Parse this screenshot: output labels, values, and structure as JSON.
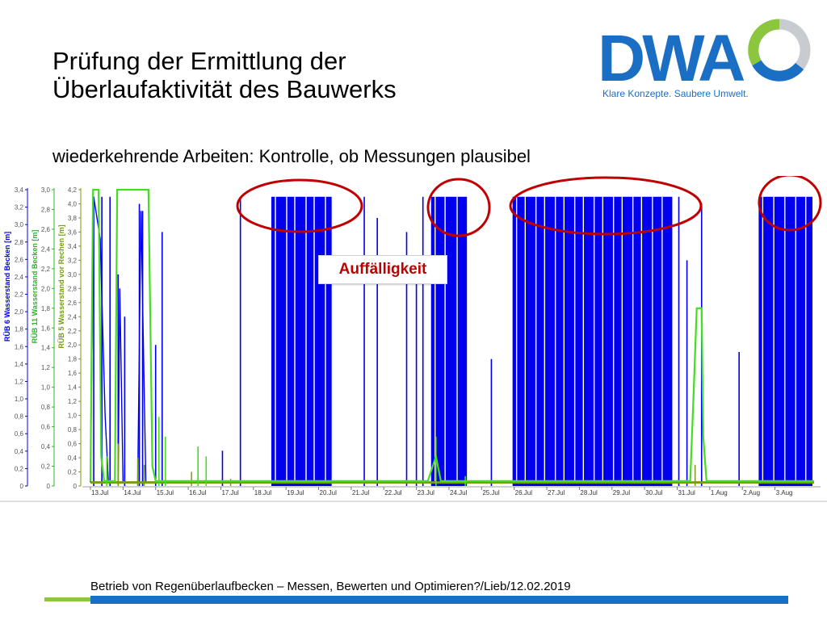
{
  "slide": {
    "title_line1": "Prüfung der Ermittlung der",
    "title_line2": "Überlaufaktivität des Bauwerks",
    "subtitle": "wiederkehrende Arbeiten: Kontrolle, ob Messungen plausibel",
    "footer": "Betrieb von Regenüberlaufbecken – Messen, Bewerten und Optimieren?/Lieb/12.02.2019",
    "callout": "Auffälligkeit"
  },
  "logo": {
    "text": "DWA",
    "tagline": "Klare Konzepte. Saubere Umwelt."
  },
  "colors": {
    "blue_series": "#0000ee",
    "green_series": "#44dd22",
    "olive_series": "#7a9a1a",
    "callout_text": "#c00000",
    "highlight_ellipse": "#c00000",
    "brand_blue": "#1a6fc4",
    "brand_green": "#8cc63f"
  },
  "chart_data": {
    "type": "line",
    "axes": [
      {
        "label": "RÜB 6 Wasserstand Becken [m]",
        "color": "#0000ee",
        "ylim": [
          0,
          3.4
        ],
        "ticks": [
          "0",
          "0,2",
          "0,4",
          "0,6",
          "0,8",
          "1,0",
          "1,2",
          "1,4",
          "1,6",
          "1,8",
          "2,0",
          "2,2",
          "2,4",
          "2,6",
          "2,8",
          "3,0",
          "3,2",
          "3,4"
        ]
      },
      {
        "label": "RÜB 11 Wasserstand Becken [m]",
        "color": "#2db52d",
        "ylim": [
          0,
          3.0
        ],
        "ticks": [
          "0",
          "0,2",
          "0,4",
          "0,6",
          "0,8",
          "1,0",
          "1,2",
          "1,4",
          "1,6",
          "1,8",
          "2,0",
          "2,2",
          "2,4",
          "2,6",
          "2,8",
          "3,0"
        ]
      },
      {
        "label": "RÜB 5 Wasserstand vor Rechen [m]",
        "color": "#7a9a1a",
        "ylim": [
          0,
          4.2
        ],
        "ticks": [
          "0",
          "0,2",
          "0,4",
          "0,6",
          "0,8",
          "1,0",
          "1,2",
          "1,4",
          "1,6",
          "1,8",
          "2,0",
          "2,2",
          "2,4",
          "2,6",
          "2,8",
          "3,0",
          "3,2",
          "3,4",
          "3,6",
          "3,8",
          "4,0",
          "4,2"
        ]
      }
    ],
    "x_ticks": [
      "13.Jul",
      "14.Jul",
      "15.Jul",
      "16.Jul",
      "17.Jul",
      "18.Jul",
      "19.Jul",
      "20.Jul",
      "21.Jul",
      "22.Jul",
      "23.Jul",
      "24.Jul",
      "25.Jul",
      "26.Jul",
      "27.Jul",
      "28.Jul",
      "29.Jul",
      "30.Jul",
      "31.Jul",
      "1.Aug",
      "2.Aug",
      "3.Aug"
    ],
    "xlim": [
      0,
      22.2
    ],
    "grid": false,
    "dense_blocks_days": [
      [
        5.55,
        7.4
      ],
      [
        10.45,
        11.55
      ],
      [
        12.95,
        17.85
      ],
      [
        20.5,
        22.15
      ]
    ],
    "blue_spikes_days": [
      [
        0.1,
        4.1
      ],
      [
        0.35,
        4.1
      ],
      [
        0.6,
        4.1
      ],
      [
        0.85,
        3.0
      ],
      [
        1.05,
        2.4
      ],
      [
        1.5,
        4.0
      ],
      [
        1.6,
        3.9
      ],
      [
        2.0,
        2.0
      ],
      [
        2.2,
        3.6
      ],
      [
        4.05,
        0.5
      ],
      [
        4.6,
        4.1
      ],
      [
        8.4,
        4.1
      ],
      [
        8.8,
        3.8
      ],
      [
        9.7,
        3.6
      ],
      [
        10.0,
        3.0
      ],
      [
        10.2,
        4.1
      ],
      [
        12.3,
        1.8
      ],
      [
        18.05,
        4.1
      ],
      [
        18.3,
        3.2
      ],
      [
        18.75,
        4.0
      ],
      [
        19.9,
        1.9
      ]
    ],
    "green_series_points": [
      [
        0.0,
        0.05
      ],
      [
        0.08,
        3.0
      ],
      [
        0.25,
        3.0
      ],
      [
        0.33,
        0.3
      ],
      [
        0.42,
        0.05
      ],
      [
        0.75,
        0.05
      ],
      [
        0.82,
        3.0
      ],
      [
        1.45,
        3.0
      ],
      [
        1.55,
        3.0
      ],
      [
        1.78,
        3.0
      ],
      [
        1.9,
        0.2
      ],
      [
        2.0,
        0.05
      ],
      [
        10.35,
        0.05
      ],
      [
        10.5,
        0.2
      ],
      [
        10.6,
        0.3
      ],
      [
        10.75,
        0.05
      ],
      [
        18.4,
        0.05
      ],
      [
        18.5,
        0.9
      ],
      [
        18.6,
        1.8
      ],
      [
        18.75,
        1.8
      ],
      [
        18.8,
        0.5
      ],
      [
        18.9,
        0.05
      ],
      [
        22.2,
        0.05
      ]
    ],
    "green_spikes_days": [
      [
        0.5,
        0.3
      ],
      [
        2.1,
        0.7
      ],
      [
        2.3,
        0.5
      ],
      [
        3.3,
        0.4
      ],
      [
        3.55,
        0.3
      ],
      [
        10.6,
        0.5
      ],
      [
        11.5,
        0.1
      ]
    ],
    "olive_baseline": 0.05,
    "olive_spikes_days": [
      [
        0.85,
        0.6
      ],
      [
        1.45,
        0.4
      ],
      [
        1.65,
        0.3
      ],
      [
        3.1,
        0.2
      ],
      [
        4.3,
        0.1
      ],
      [
        18.55,
        0.3
      ]
    ]
  }
}
